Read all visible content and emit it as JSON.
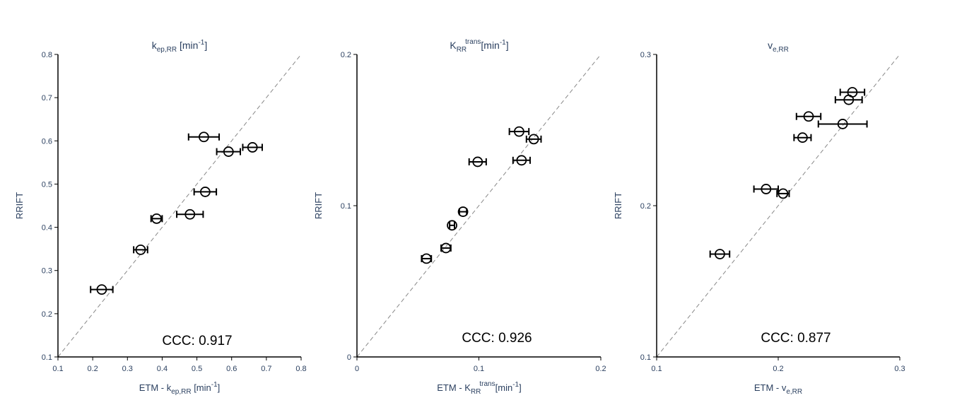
{
  "chart_data": [
    {
      "type": "scatter",
      "title": "k_ep,RR [min^-1]",
      "title_parts": {
        "main": "k",
        "sub": "ep,RR",
        "tail": " [min",
        "sup": "-1",
        "end": "]"
      },
      "xlabel": "ETM - k_ep,RR [min^-1]",
      "xlabel_parts": {
        "main": "ETM - k",
        "sub": "ep,RR",
        "tail": " [min",
        "sup": "-1",
        "end": "]"
      },
      "ylabel": "RRIFT",
      "xlim": [
        0.1,
        0.8
      ],
      "ylim": [
        0.1,
        0.8
      ],
      "xticks": [
        0.1,
        0.2,
        0.3,
        0.4,
        0.5,
        0.6,
        0.7,
        0.8
      ],
      "yticks": [
        0.1,
        0.2,
        0.3,
        0.4,
        0.5,
        0.6,
        0.7,
        0.8
      ],
      "xtick_labels": [
        "0.1",
        "0.2",
        "0.3",
        "0.4",
        "0.5",
        "0.6",
        "0.7",
        "0.8"
      ],
      "ytick_labels": [
        "0.1",
        "0.2",
        "0.3",
        "0.4",
        "0.5",
        "0.6",
        "0.7",
        "0.8"
      ],
      "identity_line": true,
      "annotation": "CCC: 0.917",
      "points": [
        {
          "x": 0.226,
          "y": 0.256,
          "xerr": 0.032
        },
        {
          "x": 0.338,
          "y": 0.348,
          "xerr": 0.02
        },
        {
          "x": 0.384,
          "y": 0.42,
          "xerr": 0.016
        },
        {
          "x": 0.48,
          "y": 0.43,
          "xerr": 0.038
        },
        {
          "x": 0.524,
          "y": 0.482,
          "xerr": 0.032
        },
        {
          "x": 0.52,
          "y": 0.609,
          "xerr": 0.044
        },
        {
          "x": 0.591,
          "y": 0.575,
          "xerr": 0.034
        },
        {
          "x": 0.66,
          "y": 0.585,
          "xerr": 0.028
        }
      ]
    },
    {
      "type": "scatter",
      "title": "K_RR^trans[min^-1]",
      "title_parts": {
        "main": "K",
        "sub": "RR",
        "sup1": "trans",
        "tail": "[min",
        "sup": "-1",
        "end": "]"
      },
      "xlabel": "ETM - K_RR^trans[min^-1]",
      "xlabel_parts": {
        "main": "ETM - K",
        "sub": "RR",
        "sup1": "trans",
        "tail": "[min",
        "sup": "-1",
        "end": "]"
      },
      "ylabel": "RRIFT",
      "xlim": [
        0,
        0.2
      ],
      "ylim": [
        0,
        0.2
      ],
      "xticks": [
        0,
        0.1,
        0.2
      ],
      "yticks": [
        0,
        0.1,
        0.2
      ],
      "xtick_labels": [
        "0",
        "0.1",
        "0.2"
      ],
      "ytick_labels": [
        "0",
        "0.1",
        "0.2"
      ],
      "identity_line": true,
      "annotation": "CCC: 0.926",
      "points": [
        {
          "x": 0.057,
          "y": 0.065,
          "xerr": 0.004
        },
        {
          "x": 0.073,
          "y": 0.072,
          "xerr": 0.004
        },
        {
          "x": 0.078,
          "y": 0.087,
          "xerr": 0.002
        },
        {
          "x": 0.087,
          "y": 0.096,
          "xerr": 0.003
        },
        {
          "x": 0.099,
          "y": 0.129,
          "xerr": 0.007
        },
        {
          "x": 0.133,
          "y": 0.149,
          "xerr": 0.008
        },
        {
          "x": 0.135,
          "y": 0.13,
          "xerr": 0.007
        },
        {
          "x": 0.145,
          "y": 0.144,
          "xerr": 0.006
        }
      ]
    },
    {
      "type": "scatter",
      "title": "v_e,RR",
      "title_parts": {
        "main": "v",
        "sub": "e,RR",
        "tail": "",
        "sup": "",
        "end": ""
      },
      "xlabel": "ETM - v_e,RR",
      "xlabel_parts": {
        "main": "ETM - v",
        "sub": "e,RR",
        "tail": "",
        "sup": "",
        "end": ""
      },
      "ylabel": "RRIFT",
      "xlim": [
        0.1,
        0.3
      ],
      "ylim": [
        0.1,
        0.3
      ],
      "xticks": [
        0.1,
        0.2,
        0.3
      ],
      "yticks": [
        0.1,
        0.2,
        0.3
      ],
      "xtick_labels": [
        "0.1",
        "0.2",
        "0.3"
      ],
      "ytick_labels": [
        "0.1",
        "0.2",
        "0.3"
      ],
      "identity_line": true,
      "annotation": "CCC: 0.877",
      "points": [
        {
          "x": 0.152,
          "y": 0.168,
          "xerr": 0.008
        },
        {
          "x": 0.19,
          "y": 0.211,
          "xerr": 0.01
        },
        {
          "x": 0.204,
          "y": 0.208,
          "xerr": 0.005
        },
        {
          "x": 0.22,
          "y": 0.245,
          "xerr": 0.007
        },
        {
          "x": 0.225,
          "y": 0.259,
          "xerr": 0.01
        },
        {
          "x": 0.253,
          "y": 0.254,
          "xerr": 0.02
        },
        {
          "x": 0.258,
          "y": 0.27,
          "xerr": 0.011
        },
        {
          "x": 0.261,
          "y": 0.275,
          "xerr": 0.01
        }
      ]
    }
  ]
}
